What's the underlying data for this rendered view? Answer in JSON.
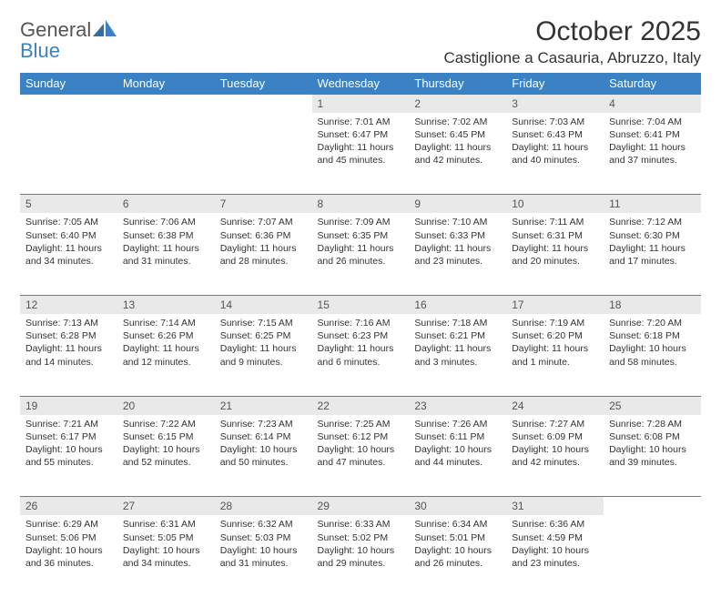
{
  "brand": {
    "word1": "General",
    "word2": "Blue"
  },
  "title": "October 2025",
  "location": "Castiglione a Casauria, Abruzzo, Italy",
  "colors": {
    "header_bg": "#3b82c4",
    "header_text": "#ffffff",
    "daynum_bg": "#e9e9e9",
    "daynum_border": "#7a7a7a",
    "text": "#333333",
    "logo_gray": "#555555",
    "logo_blue": "#3b82c4",
    "page_bg": "#ffffff"
  },
  "day_headers": [
    "Sunday",
    "Monday",
    "Tuesday",
    "Wednesday",
    "Thursday",
    "Friday",
    "Saturday"
  ],
  "weeks": [
    {
      "nums": [
        "",
        "",
        "",
        "1",
        "2",
        "3",
        "4"
      ],
      "cells": [
        {
          "sunrise": "",
          "sunset": "",
          "daylight": ""
        },
        {
          "sunrise": "",
          "sunset": "",
          "daylight": ""
        },
        {
          "sunrise": "",
          "sunset": "",
          "daylight": ""
        },
        {
          "sunrise": "Sunrise: 7:01 AM",
          "sunset": "Sunset: 6:47 PM",
          "daylight": "Daylight: 11 hours and 45 minutes."
        },
        {
          "sunrise": "Sunrise: 7:02 AM",
          "sunset": "Sunset: 6:45 PM",
          "daylight": "Daylight: 11 hours and 42 minutes."
        },
        {
          "sunrise": "Sunrise: 7:03 AM",
          "sunset": "Sunset: 6:43 PM",
          "daylight": "Daylight: 11 hours and 40 minutes."
        },
        {
          "sunrise": "Sunrise: 7:04 AM",
          "sunset": "Sunset: 6:41 PM",
          "daylight": "Daylight: 11 hours and 37 minutes."
        }
      ]
    },
    {
      "nums": [
        "5",
        "6",
        "7",
        "8",
        "9",
        "10",
        "11"
      ],
      "cells": [
        {
          "sunrise": "Sunrise: 7:05 AM",
          "sunset": "Sunset: 6:40 PM",
          "daylight": "Daylight: 11 hours and 34 minutes."
        },
        {
          "sunrise": "Sunrise: 7:06 AM",
          "sunset": "Sunset: 6:38 PM",
          "daylight": "Daylight: 11 hours and 31 minutes."
        },
        {
          "sunrise": "Sunrise: 7:07 AM",
          "sunset": "Sunset: 6:36 PM",
          "daylight": "Daylight: 11 hours and 28 minutes."
        },
        {
          "sunrise": "Sunrise: 7:09 AM",
          "sunset": "Sunset: 6:35 PM",
          "daylight": "Daylight: 11 hours and 26 minutes."
        },
        {
          "sunrise": "Sunrise: 7:10 AM",
          "sunset": "Sunset: 6:33 PM",
          "daylight": "Daylight: 11 hours and 23 minutes."
        },
        {
          "sunrise": "Sunrise: 7:11 AM",
          "sunset": "Sunset: 6:31 PM",
          "daylight": "Daylight: 11 hours and 20 minutes."
        },
        {
          "sunrise": "Sunrise: 7:12 AM",
          "sunset": "Sunset: 6:30 PM",
          "daylight": "Daylight: 11 hours and 17 minutes."
        }
      ]
    },
    {
      "nums": [
        "12",
        "13",
        "14",
        "15",
        "16",
        "17",
        "18"
      ],
      "cells": [
        {
          "sunrise": "Sunrise: 7:13 AM",
          "sunset": "Sunset: 6:28 PM",
          "daylight": "Daylight: 11 hours and 14 minutes."
        },
        {
          "sunrise": "Sunrise: 7:14 AM",
          "sunset": "Sunset: 6:26 PM",
          "daylight": "Daylight: 11 hours and 12 minutes."
        },
        {
          "sunrise": "Sunrise: 7:15 AM",
          "sunset": "Sunset: 6:25 PM",
          "daylight": "Daylight: 11 hours and 9 minutes."
        },
        {
          "sunrise": "Sunrise: 7:16 AM",
          "sunset": "Sunset: 6:23 PM",
          "daylight": "Daylight: 11 hours and 6 minutes."
        },
        {
          "sunrise": "Sunrise: 7:18 AM",
          "sunset": "Sunset: 6:21 PM",
          "daylight": "Daylight: 11 hours and 3 minutes."
        },
        {
          "sunrise": "Sunrise: 7:19 AM",
          "sunset": "Sunset: 6:20 PM",
          "daylight": "Daylight: 11 hours and 1 minute."
        },
        {
          "sunrise": "Sunrise: 7:20 AM",
          "sunset": "Sunset: 6:18 PM",
          "daylight": "Daylight: 10 hours and 58 minutes."
        }
      ]
    },
    {
      "nums": [
        "19",
        "20",
        "21",
        "22",
        "23",
        "24",
        "25"
      ],
      "cells": [
        {
          "sunrise": "Sunrise: 7:21 AM",
          "sunset": "Sunset: 6:17 PM",
          "daylight": "Daylight: 10 hours and 55 minutes."
        },
        {
          "sunrise": "Sunrise: 7:22 AM",
          "sunset": "Sunset: 6:15 PM",
          "daylight": "Daylight: 10 hours and 52 minutes."
        },
        {
          "sunrise": "Sunrise: 7:23 AM",
          "sunset": "Sunset: 6:14 PM",
          "daylight": "Daylight: 10 hours and 50 minutes."
        },
        {
          "sunrise": "Sunrise: 7:25 AM",
          "sunset": "Sunset: 6:12 PM",
          "daylight": "Daylight: 10 hours and 47 minutes."
        },
        {
          "sunrise": "Sunrise: 7:26 AM",
          "sunset": "Sunset: 6:11 PM",
          "daylight": "Daylight: 10 hours and 44 minutes."
        },
        {
          "sunrise": "Sunrise: 7:27 AM",
          "sunset": "Sunset: 6:09 PM",
          "daylight": "Daylight: 10 hours and 42 minutes."
        },
        {
          "sunrise": "Sunrise: 7:28 AM",
          "sunset": "Sunset: 6:08 PM",
          "daylight": "Daylight: 10 hours and 39 minutes."
        }
      ]
    },
    {
      "nums": [
        "26",
        "27",
        "28",
        "29",
        "30",
        "31",
        ""
      ],
      "cells": [
        {
          "sunrise": "Sunrise: 6:29 AM",
          "sunset": "Sunset: 5:06 PM",
          "daylight": "Daylight: 10 hours and 36 minutes."
        },
        {
          "sunrise": "Sunrise: 6:31 AM",
          "sunset": "Sunset: 5:05 PM",
          "daylight": "Daylight: 10 hours and 34 minutes."
        },
        {
          "sunrise": "Sunrise: 6:32 AM",
          "sunset": "Sunset: 5:03 PM",
          "daylight": "Daylight: 10 hours and 31 minutes."
        },
        {
          "sunrise": "Sunrise: 6:33 AM",
          "sunset": "Sunset: 5:02 PM",
          "daylight": "Daylight: 10 hours and 29 minutes."
        },
        {
          "sunrise": "Sunrise: 6:34 AM",
          "sunset": "Sunset: 5:01 PM",
          "daylight": "Daylight: 10 hours and 26 minutes."
        },
        {
          "sunrise": "Sunrise: 6:36 AM",
          "sunset": "Sunset: 4:59 PM",
          "daylight": "Daylight: 10 hours and 23 minutes."
        },
        {
          "sunrise": "",
          "sunset": "",
          "daylight": ""
        }
      ]
    }
  ]
}
